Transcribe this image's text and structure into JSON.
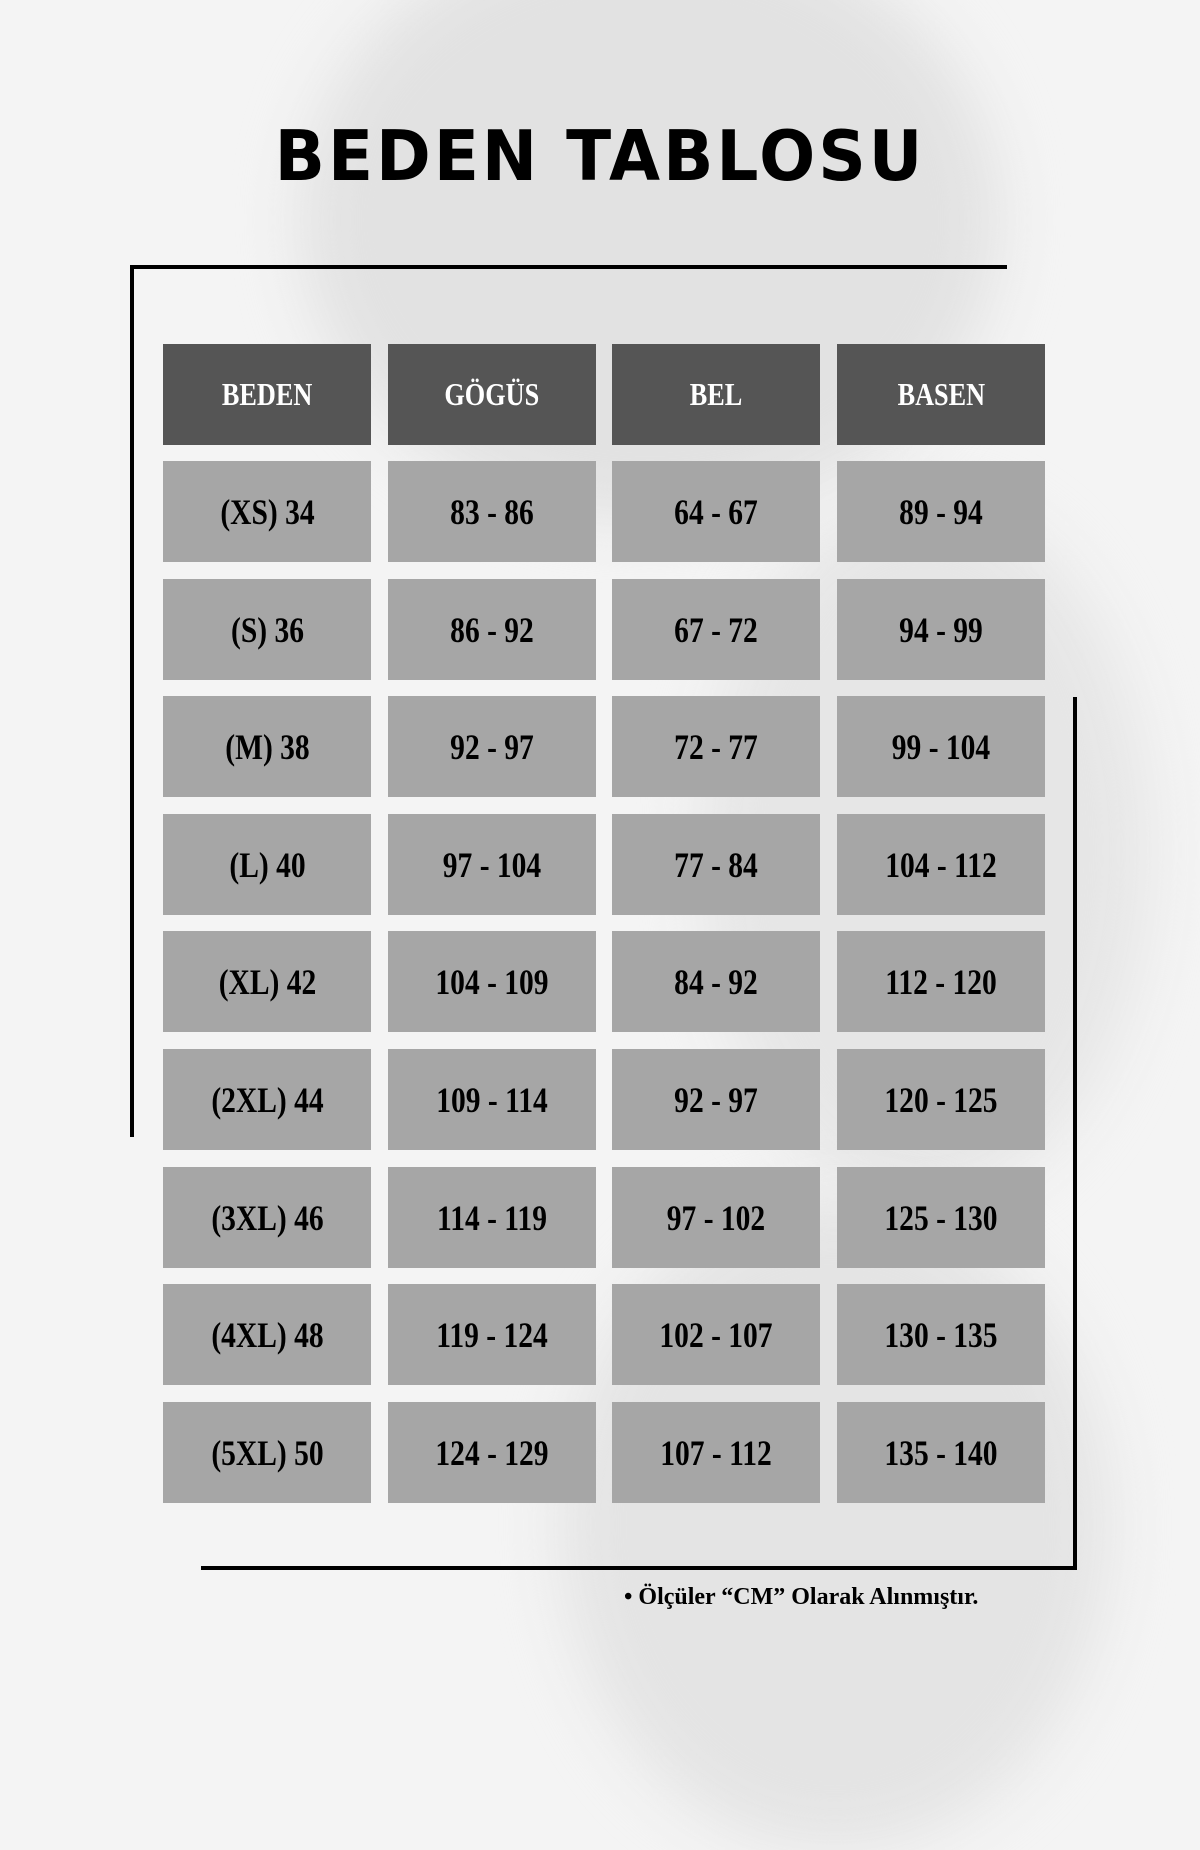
{
  "title": "BEDEN TABLOSU",
  "table": {
    "headers": [
      "BEDEN",
      "GÖGÜS",
      "BEL",
      "BASEN"
    ],
    "rows": [
      [
        "(XS) 34",
        "83 - 86",
        "64 - 67",
        "89 - 94"
      ],
      [
        "(S) 36",
        "86 - 92",
        "67 - 72",
        "94 - 99"
      ],
      [
        "(M) 38",
        "92 - 97",
        "72 - 77",
        "99 - 104"
      ],
      [
        "(L) 40",
        "97 - 104",
        "77 - 84",
        "104 - 112"
      ],
      [
        "(XL) 42",
        "104 - 109",
        "84 - 92",
        "112 - 120"
      ],
      [
        "(2XL) 44",
        "109 - 114",
        "92 - 97",
        "120 - 125"
      ],
      [
        "(3XL) 46",
        "114 - 119",
        "97 - 102",
        "125 - 130"
      ],
      [
        "(4XL) 48",
        "119 - 124",
        "102 - 107",
        "130 - 135"
      ],
      [
        "(5XL) 50",
        "124 - 129",
        "107 - 112",
        "135 - 140"
      ]
    ]
  },
  "note": "• Ölçüler “CM” Olarak Alınmıştır.",
  "colors": {
    "header_bg": "#555555",
    "cell_bg": "#a6a6a6",
    "page_bg": "#f4f4f4"
  }
}
